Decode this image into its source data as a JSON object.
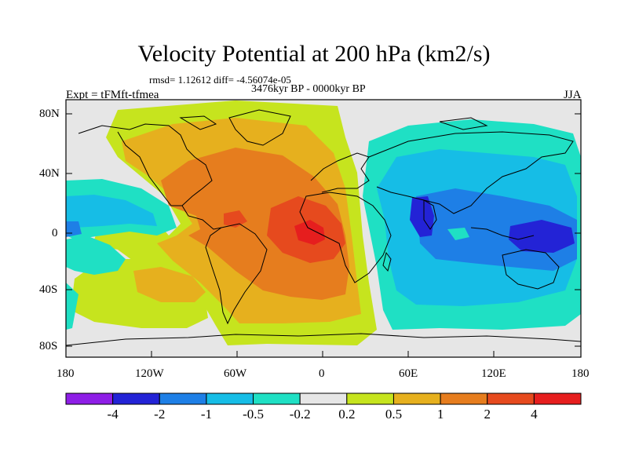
{
  "title": "Velocity Potential at 200 hPa (km2/s)",
  "stats_line": "rmsd= 1.12612 diff= -4.56074e-05",
  "experiment": "Expt = tFMft-tfmea",
  "period": "3476kyr BP - 0000kyr BP",
  "season": "JJA",
  "lat_ticks": [
    "80N",
    "40N",
    "0",
    "40S",
    "80S"
  ],
  "lon_ticks": [
    "180",
    "120W",
    "60W",
    "0",
    "60E",
    "120E",
    "180"
  ],
  "colorbar": {
    "labels": [
      "-4",
      "-2",
      "-1",
      "-0.5",
      "-0.2",
      "0.2",
      "0.5",
      "1",
      "2",
      "4"
    ],
    "colors": [
      "#8e1ee6",
      "#2323d6",
      "#1e7fe6",
      "#16bde6",
      "#1fe0c4",
      "#e6e6e6",
      "#c6e41e",
      "#e6b01e",
      "#e67d1e",
      "#e64a1e",
      "#e61e1e"
    ]
  }
}
